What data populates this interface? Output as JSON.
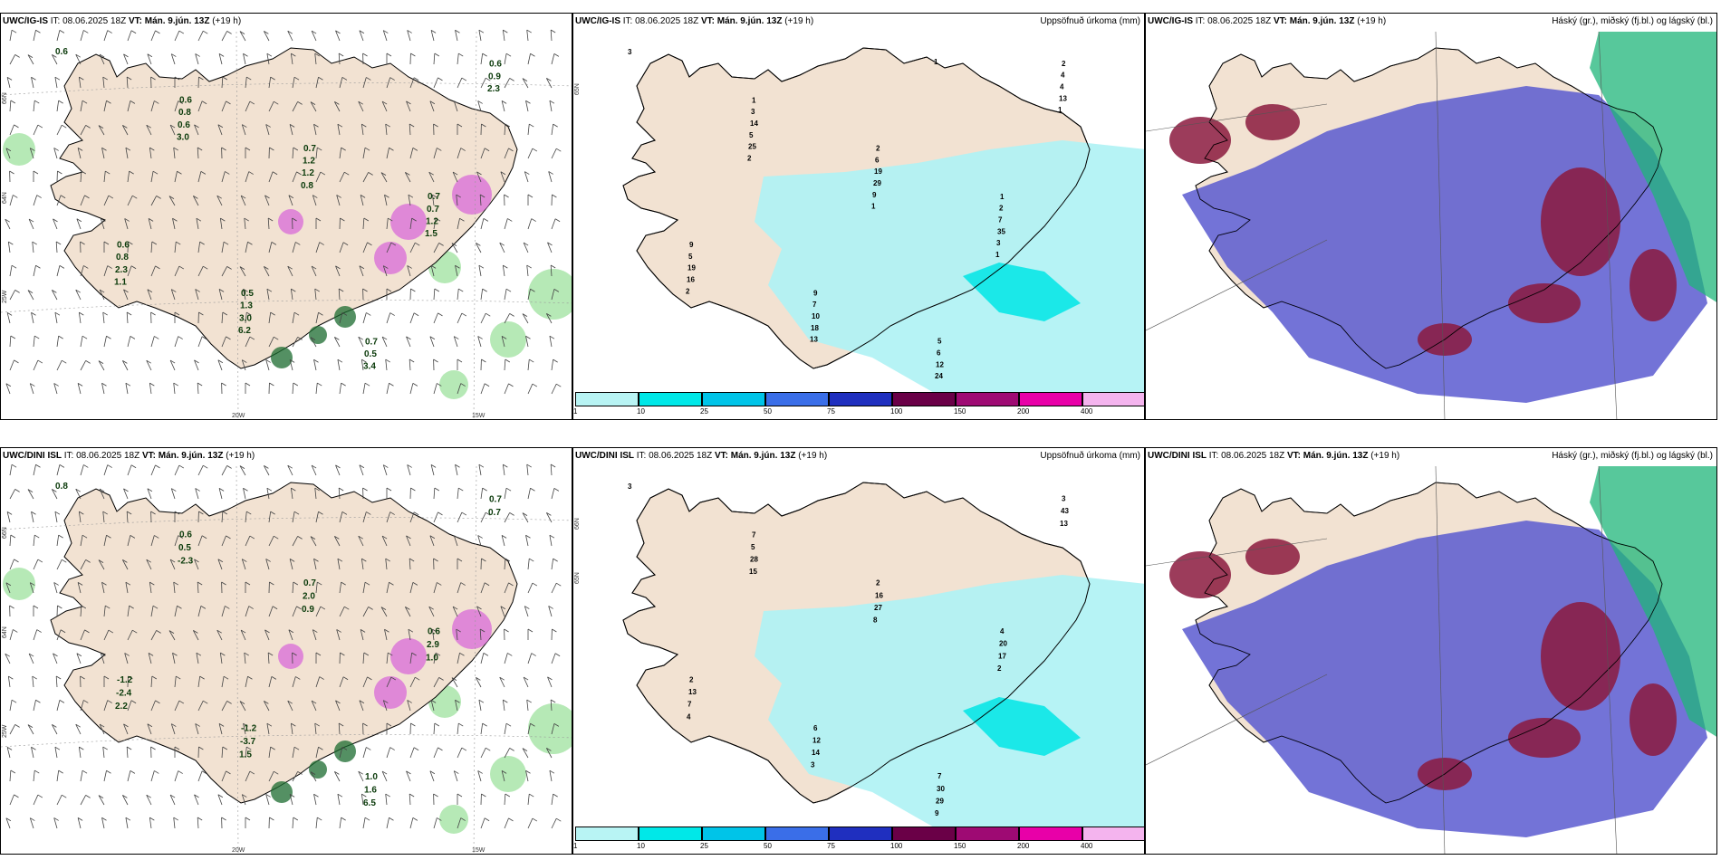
{
  "panels": [
    {
      "id": "p1",
      "model": "UWC/IG-IS",
      "it_label": "IT:",
      "it_value": "08.06.2025 18Z",
      "vt_label": "VT:",
      "vt_value": "Mán. 9.jún. 13Z",
      "offset": "(+19 h)",
      "right_title": "",
      "kind": "wind",
      "lon_labels": [
        "20W",
        "15W"
      ],
      "lat_labels": [
        "66N",
        "64N",
        "25W"
      ],
      "values": [
        "0.6",
        "0.6",
        "0.7",
        "0.7",
        "0.6",
        "0.5",
        "0.7",
        "0.6",
        "0.8",
        "1.2",
        "0.7",
        "0.8",
        "1.3",
        "0.5",
        "0.9",
        "0.6",
        "1.2",
        "1.2",
        "2.3",
        "3.0",
        "3.4",
        "2.3",
        "3.0",
        "0.8",
        "1.5",
        "1.1",
        "6.2"
      ]
    },
    {
      "id": "p2",
      "model": "UWC/IG-IS",
      "it_label": "IT:",
      "it_value": "08.06.2025 18Z",
      "vt_label": "VT:",
      "vt_value": "Mán. 9.jún. 13Z",
      "offset": "(+19 h)",
      "right_title": "Uppsöfnuð úrkoma (mm)",
      "kind": "precip",
      "lat_labels": [
        "65N"
      ],
      "values": [
        "3",
        "1",
        "2",
        "1",
        "9",
        "9",
        "5",
        "2",
        "3",
        "6",
        "2",
        "5",
        "7",
        "6",
        "4",
        "14",
        "19",
        "7",
        "19",
        "10",
        "12",
        "4",
        "5",
        "29",
        "35",
        "16",
        "18",
        "24",
        "13",
        "25",
        "9",
        "3",
        "2",
        "13",
        "1",
        "1",
        "2",
        "1",
        "1"
      ]
    },
    {
      "id": "p3",
      "model": "UWC/IG-IS",
      "it_label": "IT:",
      "it_value": "08.06.2025 18Z",
      "vt_label": "VT:",
      "vt_value": "Mán. 9.jún. 13Z",
      "offset": "(+19 h)",
      "right_title": "Háský (gr.), miðský (fj.bl.) og lágský (bl.)",
      "kind": "cloud"
    },
    {
      "id": "p4",
      "model": "UWC/DINI ISL",
      "it_label": "IT:",
      "it_value": "08.06.2025 18Z",
      "vt_label": "VT:",
      "vt_value": "Mán. 9.jún. 13Z",
      "offset": "(+19 h)",
      "right_title": "",
      "kind": "wind",
      "lon_labels": [
        "20W",
        "15W"
      ],
      "lat_labels": [
        "66N",
        "64N",
        "25W"
      ],
      "values": [
        "0.8",
        "0.6",
        "0.7",
        "0.6",
        "-1.2",
        "-1.2",
        "1.0",
        "0.7",
        "0.5",
        "2.0",
        "2.9",
        "-2.4",
        "-3.7",
        "1.6",
        "0.7",
        "-2.3",
        "0.9",
        "1.0",
        "2.2",
        "1.5",
        "6.5"
      ]
    },
    {
      "id": "p5",
      "model": "UWC/DINI ISL",
      "it_label": "IT:",
      "it_value": "08.06.2025 18Z",
      "vt_label": "VT:",
      "vt_value": "Mán. 9.jún. 13Z",
      "offset": "(+19 h)",
      "right_title": "Uppsöfnuð úrkoma (mm)",
      "kind": "precip",
      "lat_labels": [
        "66N",
        "65N"
      ],
      "values": [
        "3",
        "7",
        "2",
        "4",
        "2",
        "6",
        "7",
        "3",
        "5",
        "16",
        "20",
        "13",
        "12",
        "30",
        "43",
        "28",
        "27",
        "17",
        "7",
        "14",
        "29",
        "13",
        "15",
        "8",
        "2",
        "4",
        "3",
        "9"
      ]
    },
    {
      "id": "p6",
      "model": "UWC/DINI ISL",
      "it_label": "IT:",
      "it_value": "08.06.2025 18Z",
      "vt_label": "VT:",
      "vt_value": "Mán. 9.jún. 13Z",
      "offset": "(+19 h)",
      "right_title": "Háský (gr.), miðský (fj.bl.) og lágský (bl.)",
      "kind": "cloud"
    }
  ],
  "colorbar": {
    "ticks": [
      "1",
      "10",
      "25",
      "50",
      "75",
      "100",
      "150",
      "200",
      "400"
    ],
    "colors": [
      "#b8f4f4",
      "#00e8e8",
      "#00c4e8",
      "#3a6ee8",
      "#1f2fbf",
      "#6a0047",
      "#9e0a73",
      "#e800a8",
      "#f4b4ee"
    ]
  },
  "colors": {
    "land": "#f2e2d2",
    "coast": "#000000",
    "sea": "#ffffff",
    "precip_light": "#b0f2f4",
    "precip_mid": "#00e5e5",
    "cloud_low": "#5a5ad0",
    "cloud_mid": "#8b1a3e",
    "cloud_high": "#1fb67a",
    "snow_pink": "#d86ad8",
    "green_precip": "#97e097"
  }
}
